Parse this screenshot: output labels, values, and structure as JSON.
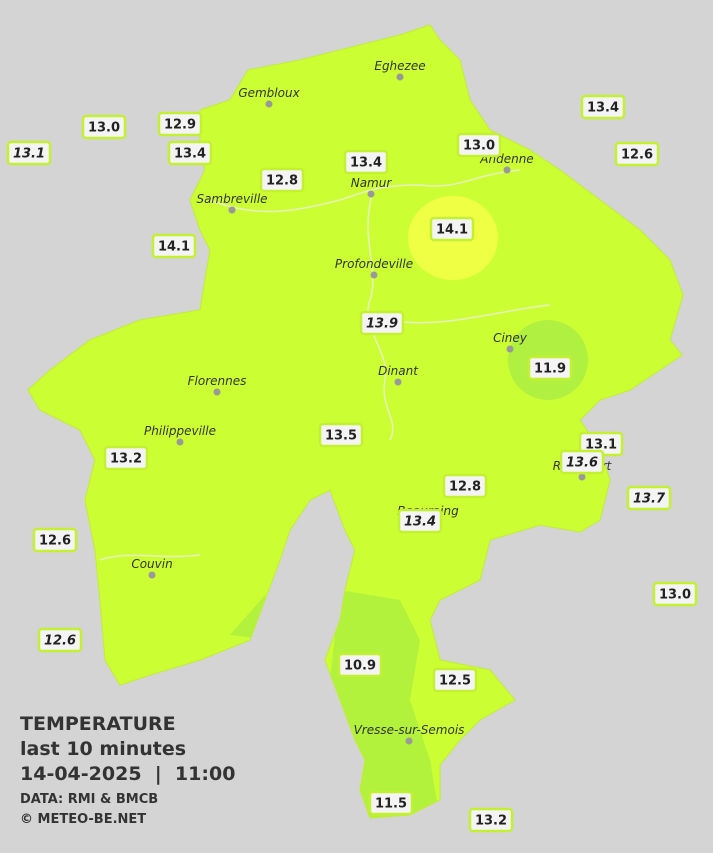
{
  "legend": {
    "title": "TEMPERATURE",
    "subtitle": "last 10 minutes",
    "datetime": "14-04-2025  |  11:00",
    "source": "DATA: RMI & BMCB",
    "credit": "© METEO-BE.NET"
  },
  "cities": [
    "Eghezee",
    "Gembloux",
    "Andenne",
    "Namur",
    "Sambreville",
    "Profondeville",
    "Ciney",
    "Dinant",
    "Florennes",
    "Philippeville",
    "Rochefort",
    "Beauraing",
    "Couvin",
    "Vresse-sur-Semois"
  ],
  "stations": [
    {
      "value": "13.0",
      "italic": false
    },
    {
      "value": "12.9",
      "italic": false
    },
    {
      "value": "13.1",
      "italic": true
    },
    {
      "value": "13.4",
      "italic": false
    },
    {
      "value": "12.8",
      "italic": false
    },
    {
      "value": "13.4",
      "italic": false
    },
    {
      "value": "13.0",
      "italic": false
    },
    {
      "value": "13.4",
      "italic": false
    },
    {
      "value": "12.6",
      "italic": false
    },
    {
      "value": "14.1",
      "italic": false
    },
    {
      "value": "14.1",
      "italic": false
    },
    {
      "value": "13.9",
      "italic": true
    },
    {
      "value": "11.9",
      "italic": false
    },
    {
      "value": "13.5",
      "italic": false
    },
    {
      "value": "13.2",
      "italic": false
    },
    {
      "value": "13.1",
      "italic": false
    },
    {
      "value": "13.6",
      "italic": true
    },
    {
      "value": "12.8",
      "italic": false
    },
    {
      "value": "13.4",
      "italic": true
    },
    {
      "value": "13.7",
      "italic": true
    },
    {
      "value": "12.6",
      "italic": false
    },
    {
      "value": "13.0",
      "italic": false
    },
    {
      "value": "12.6",
      "italic": true
    },
    {
      "value": "10.9",
      "italic": false
    },
    {
      "value": "12.5",
      "italic": false
    },
    {
      "value": "11.5",
      "italic": false
    },
    {
      "value": "13.2",
      "italic": false
    }
  ]
}
